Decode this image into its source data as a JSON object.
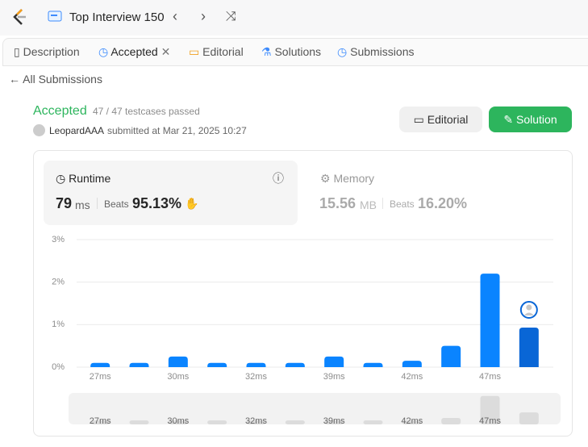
{
  "header": {
    "title": "Top Interview 150"
  },
  "tabs": [
    "Description",
    "Accepted",
    "Editorial",
    "Solutions",
    "Submissions"
  ],
  "back": "All Submissions",
  "result": {
    "status": "Accepted",
    "testcases": "47 / 47 testcases passed",
    "user": "LeopardAAA",
    "submitted": "submitted at Mar 21, 2025 10:27"
  },
  "buttons": [
    "Editorial",
    "Solution"
  ],
  "runtime": {
    "label": "Runtime",
    "value": "79",
    "unit": "ms",
    "beats_label": "Beats",
    "beats": "95.13%"
  },
  "memory": {
    "label": "Memory",
    "value": "15.56",
    "unit": "MB",
    "beats_label": "Beats",
    "beats": "16.20%"
  },
  "chart_data": {
    "type": "bar",
    "categories": [
      "27ms",
      null,
      "30ms",
      null,
      "32ms",
      null,
      "39ms",
      null,
      "42ms",
      null,
      "47ms",
      null
    ],
    "values": [
      0.1,
      0.1,
      0.25,
      0.1,
      0.1,
      0.1,
      0.25,
      0.1,
      0.15,
      0.5,
      2.2,
      0.93
    ],
    "color": "#0a84ff",
    "highlight_color": "#0966d6",
    "highlight_index": 11,
    "ylim": [
      0,
      3
    ],
    "yticks": [
      {
        "value": 0,
        "label": "0%"
      },
      {
        "value": 1,
        "label": "1%"
      },
      {
        "value": 2,
        "label": "2%"
      },
      {
        "value": 3,
        "label": "3%"
      }
    ],
    "grid": true
  }
}
